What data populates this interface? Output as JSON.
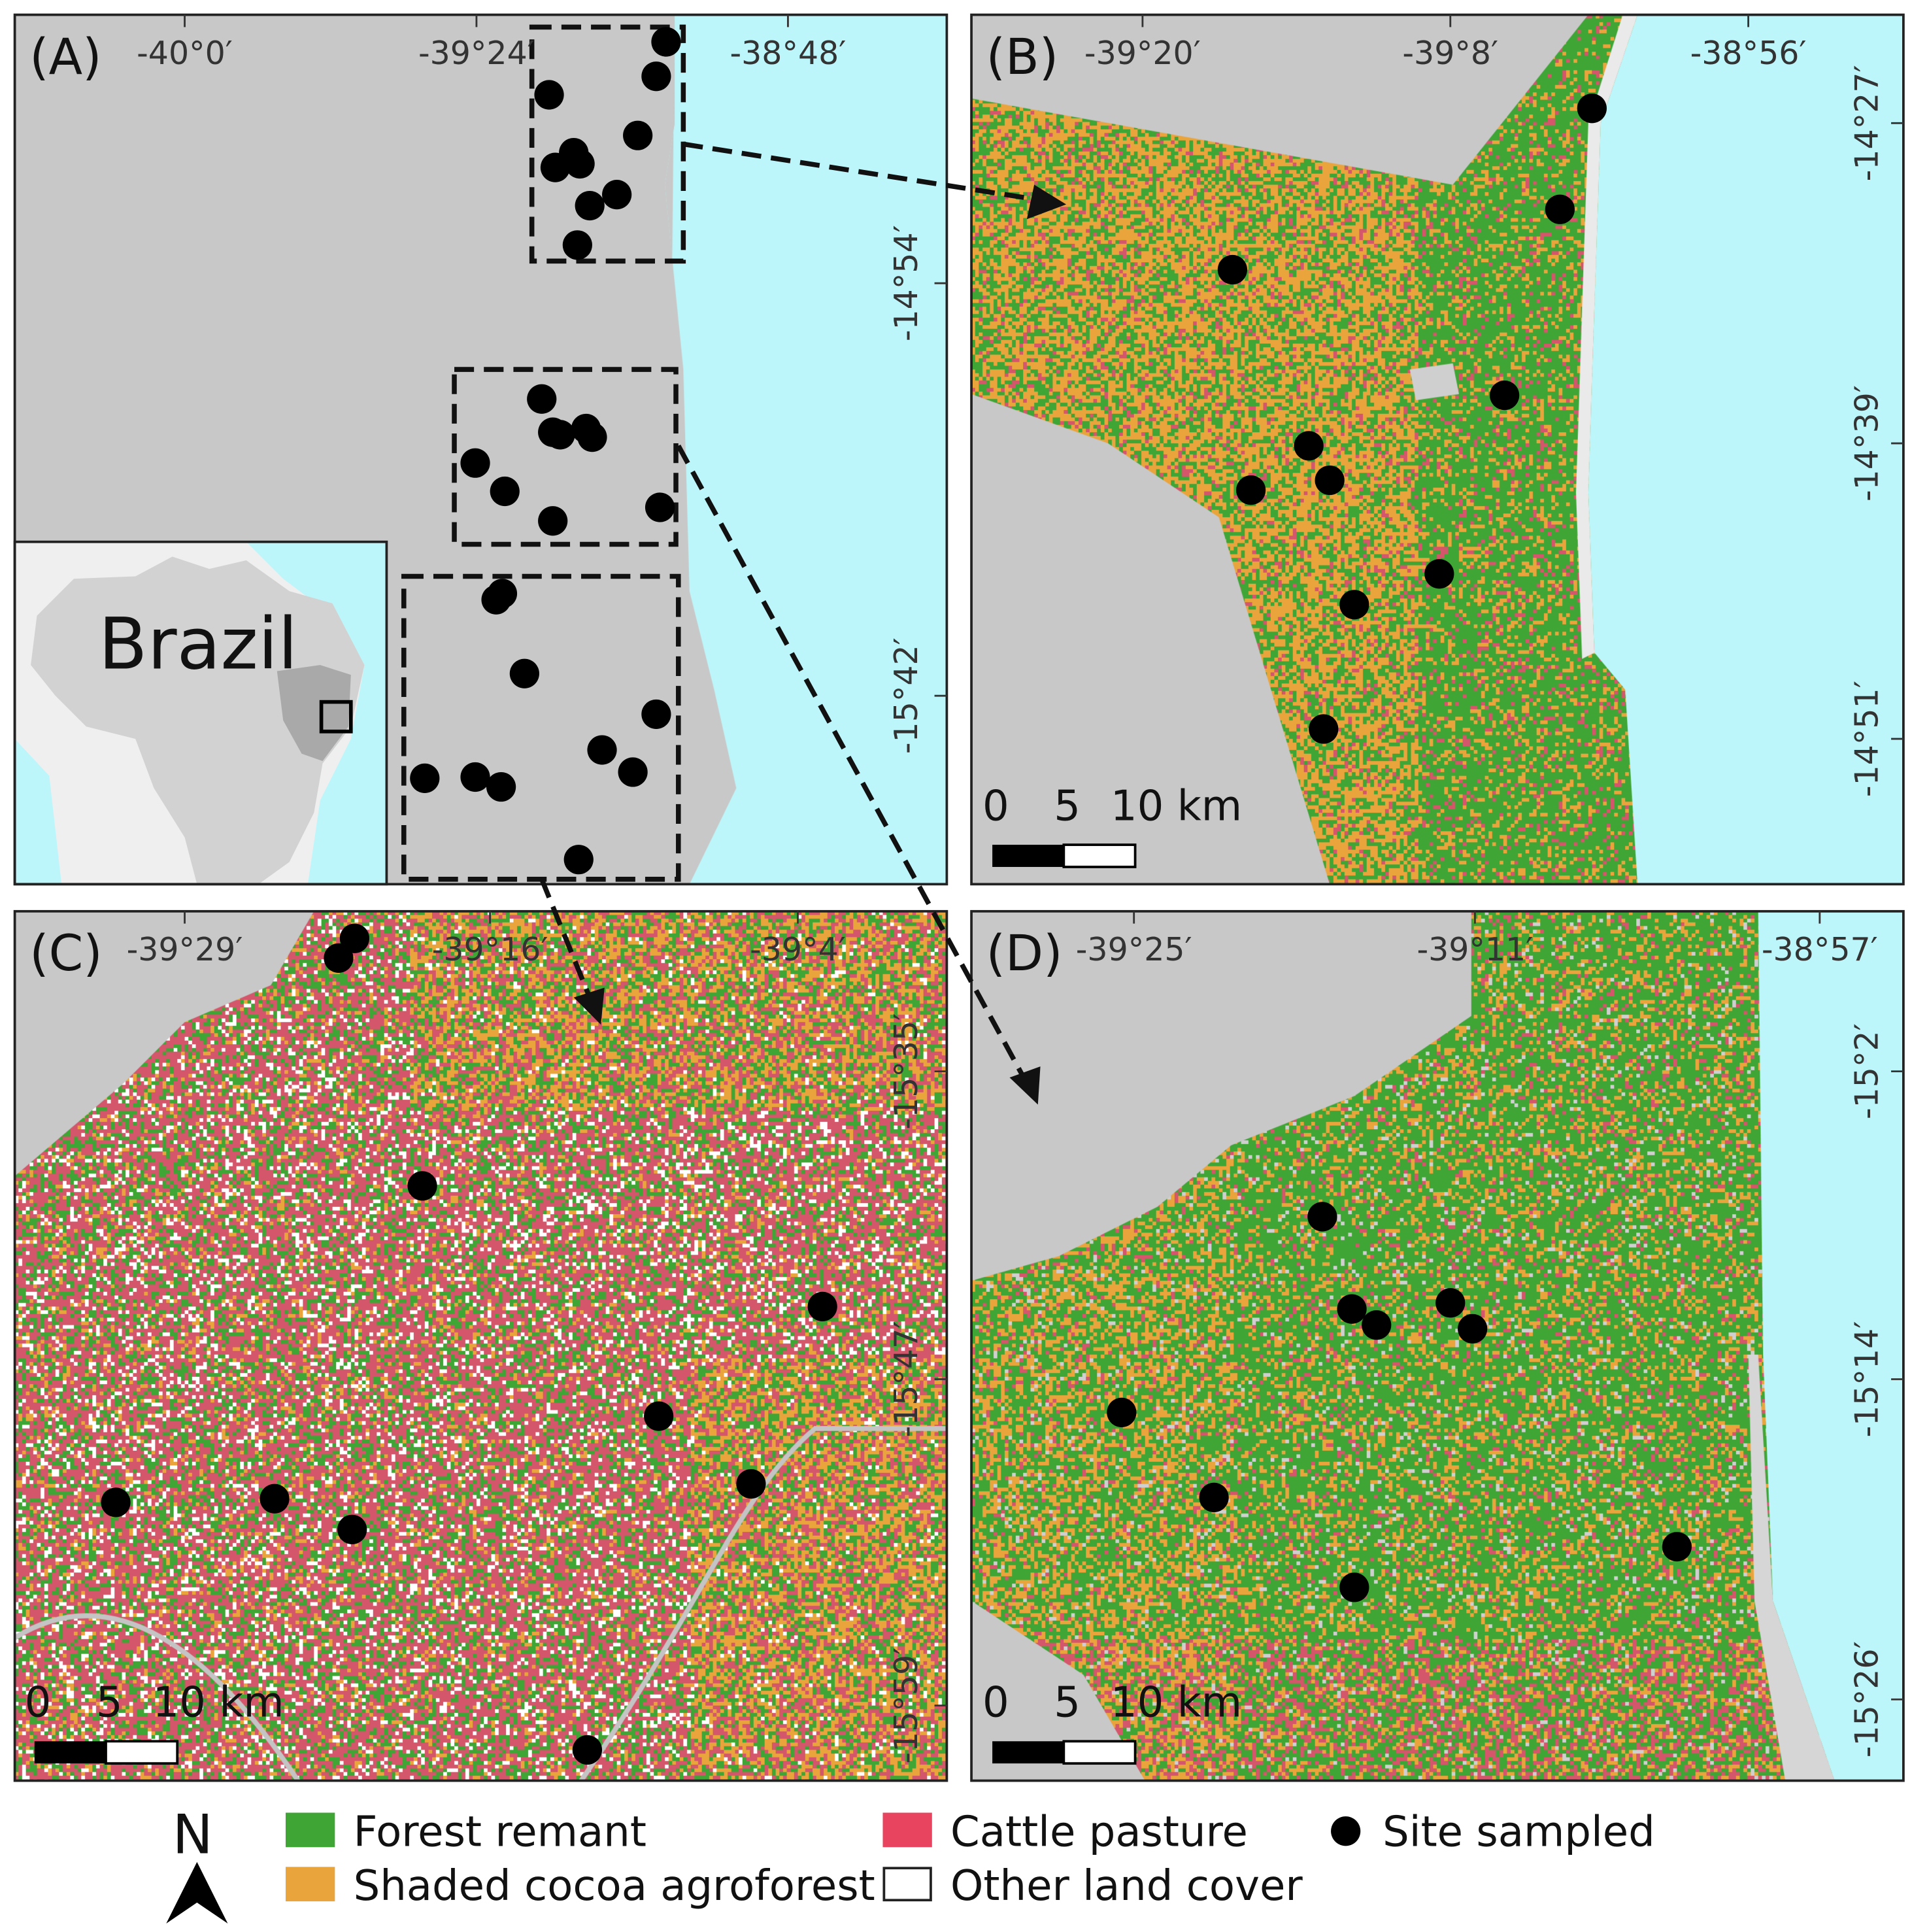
{
  "colors": {
    "forest": "#3fa535",
    "cocoa": "#eaa43c",
    "pasture": "#d4566a",
    "other": "#ffffff",
    "land_outside": "#c8c8c8",
    "sea": "#bdf6fa",
    "site": "#000000"
  },
  "panels": {
    "A": {
      "label": "(A)",
      "x_ticks": [
        "-40°0′",
        "-39°24′",
        "-38°48′"
      ],
      "y_ticks": [
        "-14°54′",
        "-15°42′"
      ],
      "inset_label": "Brazil"
    },
    "B": {
      "label": "(B)",
      "x_ticks": [
        "-39°20′",
        "-39°8′",
        "-38°56′"
      ],
      "y_ticks": [
        "-14°27′",
        "-14°39′",
        "-14°51′"
      ],
      "scale_labels": [
        "0",
        "5",
        "10 km"
      ]
    },
    "C": {
      "label": "(C)",
      "x_ticks": [
        "-39°29′",
        "-39°16′",
        "-39°4′"
      ],
      "y_ticks": [
        "-15°35′",
        "-15°47′",
        "-15°59′"
      ],
      "scale_labels": [
        "0",
        "5",
        "10 km"
      ]
    },
    "D": {
      "label": "(D)",
      "x_ticks": [
        "-39°25′",
        "-39°11′",
        "-38°57′"
      ],
      "y_ticks": [
        "-15°2′",
        "-15°14′",
        "-15°26′"
      ],
      "scale_labels": [
        "0",
        "5",
        "10 km"
      ]
    }
  },
  "north_arrow": "N",
  "legend": {
    "forest": "Forest remant",
    "cocoa": "Shaded cocoa agroforest",
    "pasture": "Cattle pasture",
    "other": "Other land cover",
    "site": "Site sampled"
  }
}
